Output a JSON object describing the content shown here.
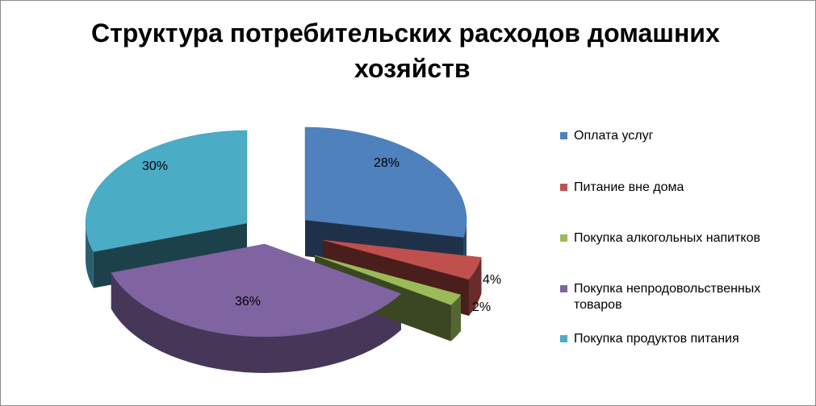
{
  "chart_data": {
    "type": "pie",
    "title_line1": "Структура потребительских расходов домашних",
    "title_line2": "хозяйств",
    "slices": [
      {
        "name": "Оплата услуг",
        "value": 28,
        "label": "28%",
        "color": "#4f81bd"
      },
      {
        "name": "Питание вне дома",
        "value": 4,
        "label": "4%",
        "color": "#c0504d"
      },
      {
        "name": "Покупка алкогольных напитков",
        "value": 2,
        "label": "2%",
        "color": "#9bbb59"
      },
      {
        "name": "Покупка непродовольственных товаров",
        "value": 36,
        "label": "36%",
        "color": "#8064a2"
      },
      {
        "name": "Покупка продуктов питания",
        "value": 30,
        "label": "30%",
        "color": "#4bacc6"
      }
    ],
    "legend_position": "right",
    "exploded": true,
    "three_d": true
  }
}
